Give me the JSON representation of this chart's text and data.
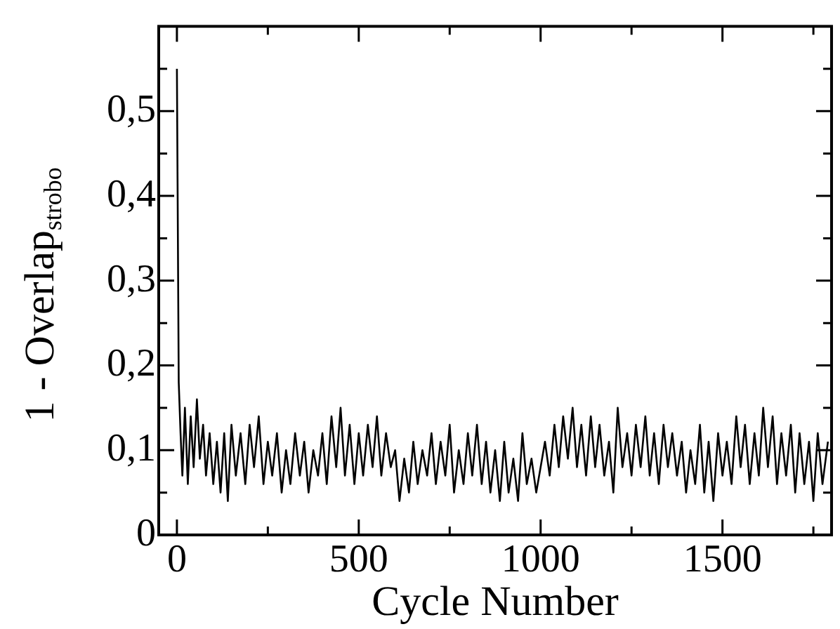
{
  "chart_data": {
    "type": "line",
    "xlabel": "Cycle Number",
    "ylabel": "1 - Overlap$_{strobo}$",
    "x": [
      0,
      5,
      10,
      15,
      22,
      30,
      38,
      46,
      55,
      63,
      72,
      80,
      90,
      100,
      110,
      120,
      130,
      140,
      150,
      162,
      175,
      188,
      200,
      212,
      225,
      238,
      250,
      262,
      275,
      288,
      300,
      312,
      325,
      338,
      350,
      362,
      375,
      388,
      400,
      412,
      425,
      438,
      450,
      462,
      475,
      488,
      500,
      512,
      525,
      538,
      550,
      562,
      575,
      588,
      600,
      612,
      625,
      638,
      650,
      662,
      675,
      688,
      700,
      712,
      725,
      738,
      750,
      762,
      775,
      788,
      800,
      812,
      825,
      838,
      850,
      862,
      875,
      888,
      900,
      912,
      925,
      938,
      950,
      962,
      975,
      988,
      1000,
      1012,
      1025,
      1038,
      1050,
      1062,
      1075,
      1088,
      1100,
      1112,
      1125,
      1138,
      1150,
      1162,
      1175,
      1188,
      1200,
      1212,
      1225,
      1238,
      1250,
      1262,
      1275,
      1288,
      1300,
      1312,
      1325,
      1338,
      1350,
      1362,
      1375,
      1388,
      1400,
      1412,
      1425,
      1438,
      1450,
      1462,
      1475,
      1488,
      1500,
      1512,
      1525,
      1538,
      1550,
      1562,
      1575,
      1588,
      1600,
      1612,
      1625,
      1638,
      1650,
      1662,
      1675,
      1688,
      1700,
      1712,
      1725,
      1738,
      1750,
      1762,
      1775,
      1790
    ],
    "series": [
      {
        "color": "#000000",
        "values": [
          0.55,
          0.18,
          0.12,
          0.07,
          0.15,
          0.06,
          0.14,
          0.08,
          0.16,
          0.09,
          0.13,
          0.07,
          0.12,
          0.06,
          0.11,
          0.05,
          0.12,
          0.04,
          0.13,
          0.07,
          0.12,
          0.06,
          0.13,
          0.08,
          0.14,
          0.06,
          0.11,
          0.07,
          0.12,
          0.05,
          0.1,
          0.06,
          0.12,
          0.07,
          0.11,
          0.05,
          0.1,
          0.07,
          0.12,
          0.06,
          0.14,
          0.08,
          0.15,
          0.07,
          0.13,
          0.06,
          0.12,
          0.07,
          0.13,
          0.08,
          0.14,
          0.07,
          0.12,
          0.08,
          0.1,
          0.04,
          0.09,
          0.05,
          0.11,
          0.06,
          0.1,
          0.07,
          0.12,
          0.06,
          0.11,
          0.07,
          0.13,
          0.05,
          0.1,
          0.06,
          0.12,
          0.07,
          0.13,
          0.06,
          0.11,
          0.05,
          0.1,
          0.04,
          0.11,
          0.05,
          0.09,
          0.04,
          0.12,
          0.06,
          0.09,
          0.05,
          0.08,
          0.11,
          0.07,
          0.13,
          0.08,
          0.14,
          0.09,
          0.15,
          0.08,
          0.13,
          0.07,
          0.14,
          0.08,
          0.13,
          0.07,
          0.11,
          0.05,
          0.15,
          0.08,
          0.12,
          0.07,
          0.13,
          0.08,
          0.14,
          0.07,
          0.12,
          0.06,
          0.13,
          0.08,
          0.12,
          0.07,
          0.11,
          0.05,
          0.1,
          0.06,
          0.13,
          0.05,
          0.11,
          0.04,
          0.12,
          0.07,
          0.11,
          0.06,
          0.14,
          0.08,
          0.13,
          0.06,
          0.12,
          0.07,
          0.15,
          0.08,
          0.14,
          0.06,
          0.12,
          0.07,
          0.13,
          0.05,
          0.12,
          0.06,
          0.11,
          0.04,
          0.12,
          0.06,
          0.11
        ]
      }
    ],
    "xlim": [
      -50,
      1800
    ],
    "xticks": [
      0,
      {
        "value": 250,
        "label": null
      },
      500,
      {
        "value": 750,
        "label": null
      },
      1000,
      {
        "value": 1250,
        "label": null
      },
      1500,
      {
        "value": 1750,
        "label": null
      }
    ],
    "ylim": [
      0,
      0.6
    ],
    "yticks": [
      {
        "value": 0,
        "label": "0"
      },
      {
        "value": 0.05,
        "label": null
      },
      {
        "value": 0.1,
        "label": "0,1"
      },
      {
        "value": 0.15,
        "label": null
      },
      {
        "value": 0.2,
        "label": "0,2"
      },
      {
        "value": 0.25,
        "label": null
      },
      {
        "value": 0.3,
        "label": "0,3"
      },
      {
        "value": 0.35,
        "label": null
      },
      {
        "value": 0.4,
        "label": "0,4"
      },
      {
        "value": 0.45,
        "label": null
      },
      {
        "value": 0.5,
        "label": "0,5"
      },
      {
        "value": 0.55,
        "label": null
      }
    ],
    "marker": "none",
    "line_style": "solid",
    "legend": false,
    "grid": false
  }
}
